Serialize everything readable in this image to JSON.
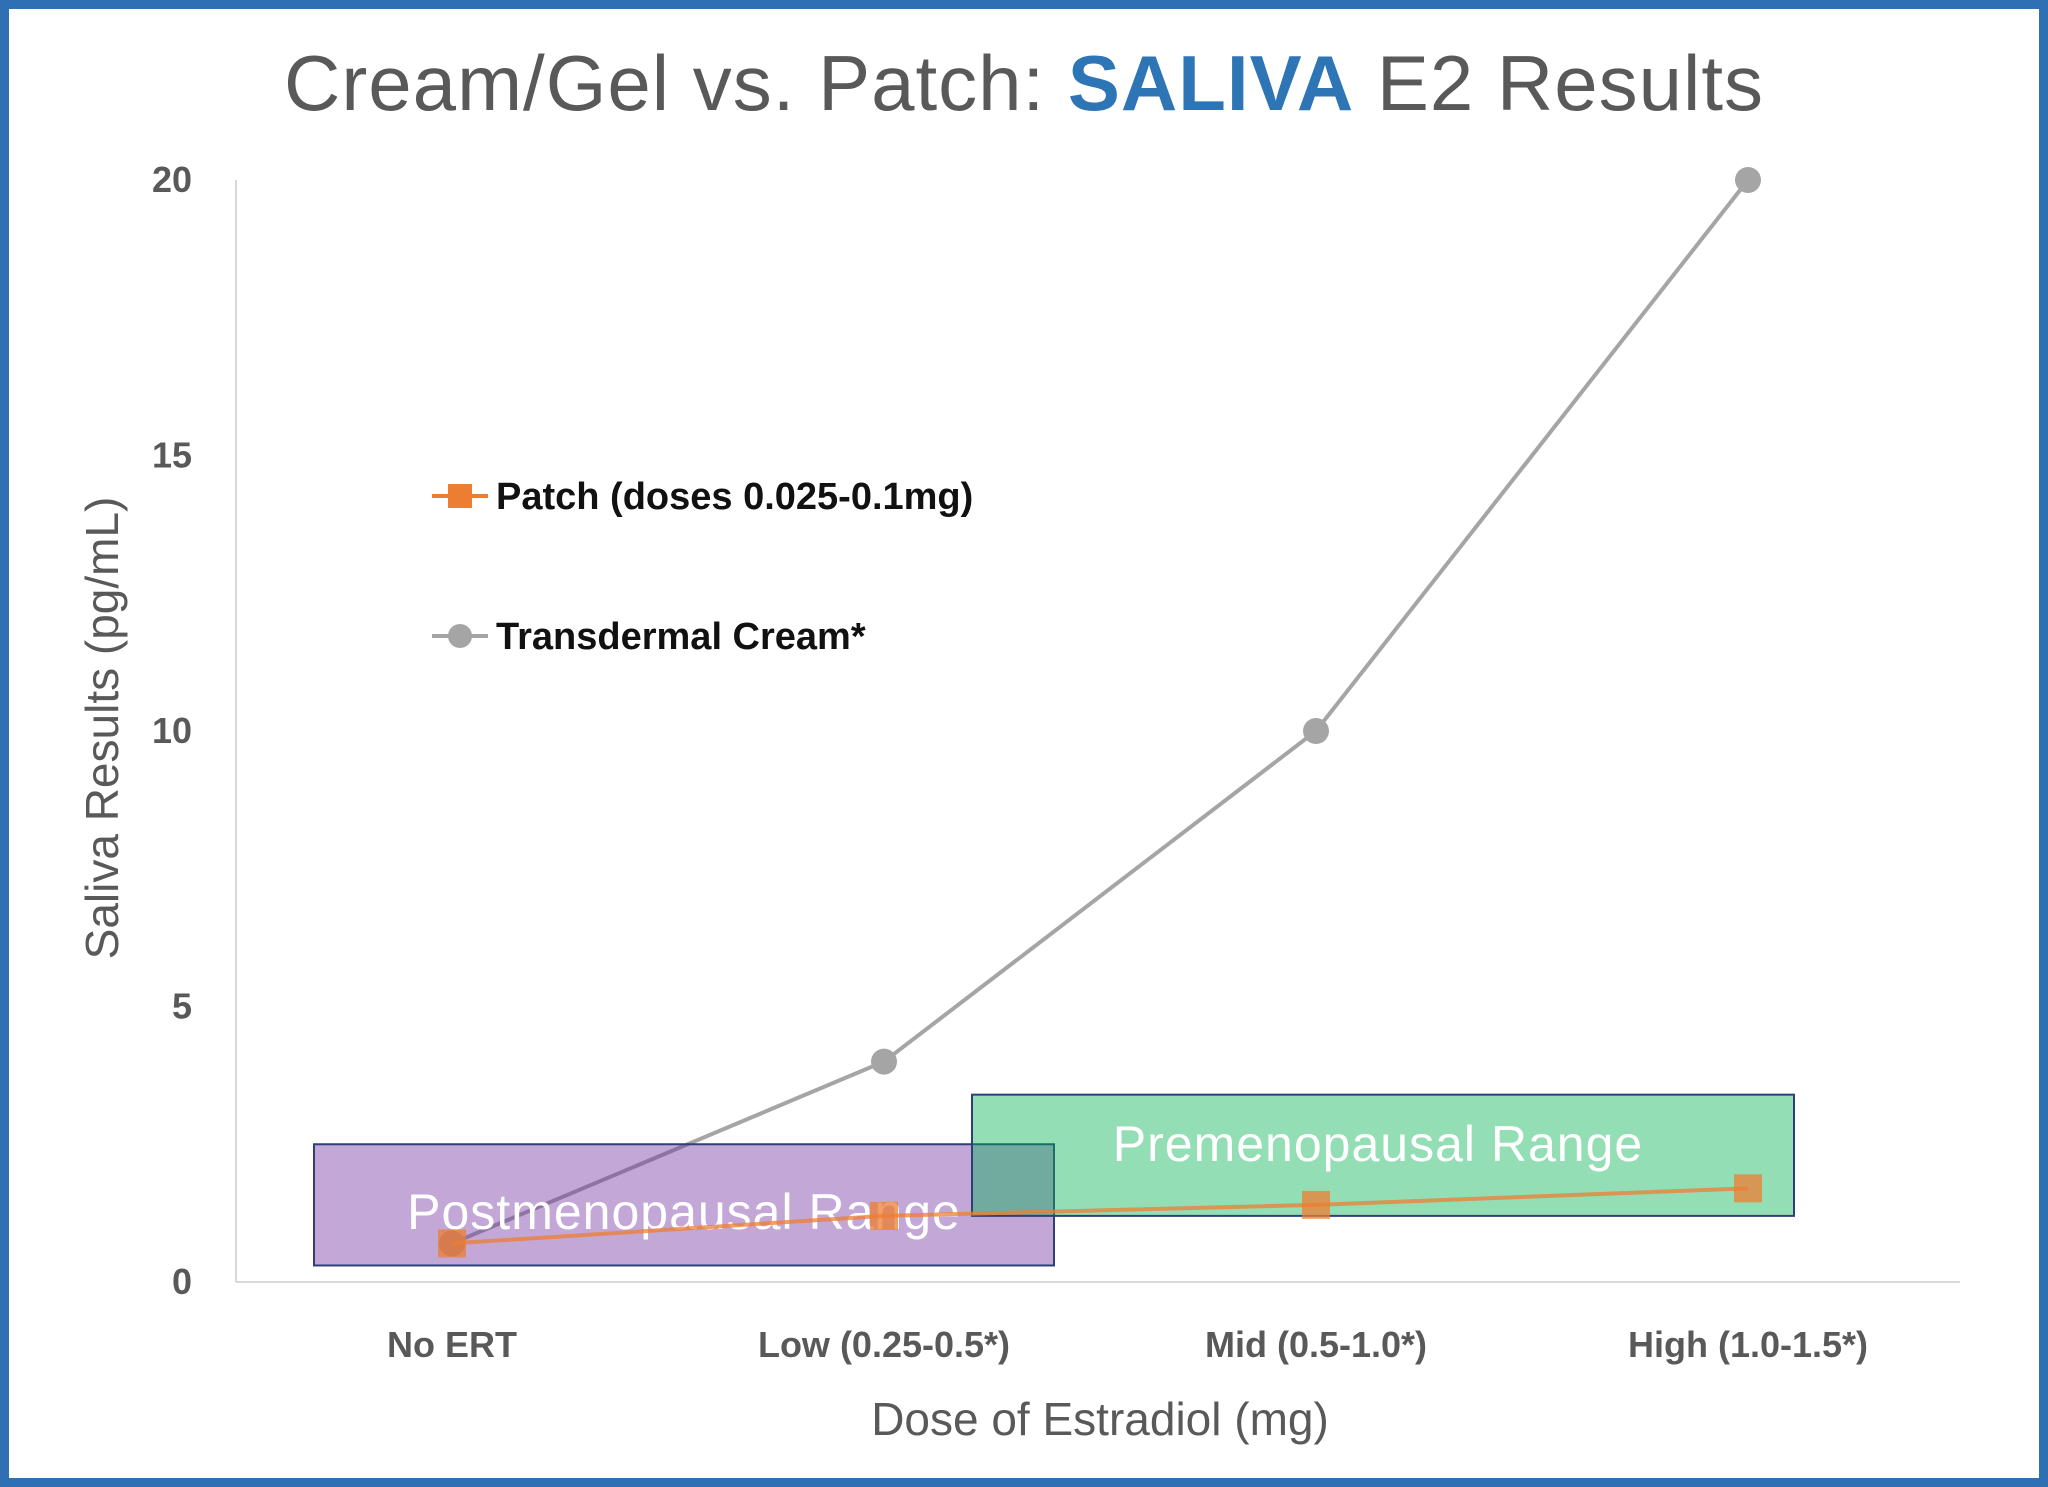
{
  "title": {
    "prefix": "Cream/Gel vs. Patch: ",
    "highlight": "SALIVA",
    "suffix": " E2 Results",
    "highlight_color": "#2e75b6"
  },
  "frame_color": "#2f6fb4",
  "chart_data": {
    "type": "line",
    "categories": [
      "No ERT",
      "Low (0.25-0.5*)",
      "Mid (0.5-1.0*)",
      "High (1.0-1.5*)"
    ],
    "xlabel": "Dose of Estradiol (mg)",
    "ylabel": "Saliva Results (pg/mL)",
    "ylim": [
      0,
      20
    ],
    "yticks": [
      0,
      5,
      10,
      15,
      20
    ],
    "grid": false,
    "legend_position": "upper-left",
    "series": [
      {
        "name": "Patch (doses 0.025-0.1mg)",
        "values": [
          0.7,
          1.2,
          1.4,
          1.7
        ],
        "color": "#ed7d31",
        "marker": "square"
      },
      {
        "name": "Transdermal Cream*",
        "values": [
          0.7,
          4.0,
          10.0,
          20.0
        ],
        "color": "#a5a5a5",
        "marker": "circle"
      }
    ],
    "ranges": [
      {
        "label": "Postmenopausal Range",
        "x_from": "No ERT",
        "x_to": "Low (0.25-0.5*)",
        "y_from": 0.3,
        "y_to": 2.5,
        "color": "#7030a0"
      },
      {
        "label": "Premenopausal Range",
        "x_from": "Low (0.25-0.5*)",
        "x_to": "High (1.0-1.5*)",
        "y_from": 1.2,
        "y_to": 3.4,
        "color": "#00b050"
      }
    ]
  }
}
